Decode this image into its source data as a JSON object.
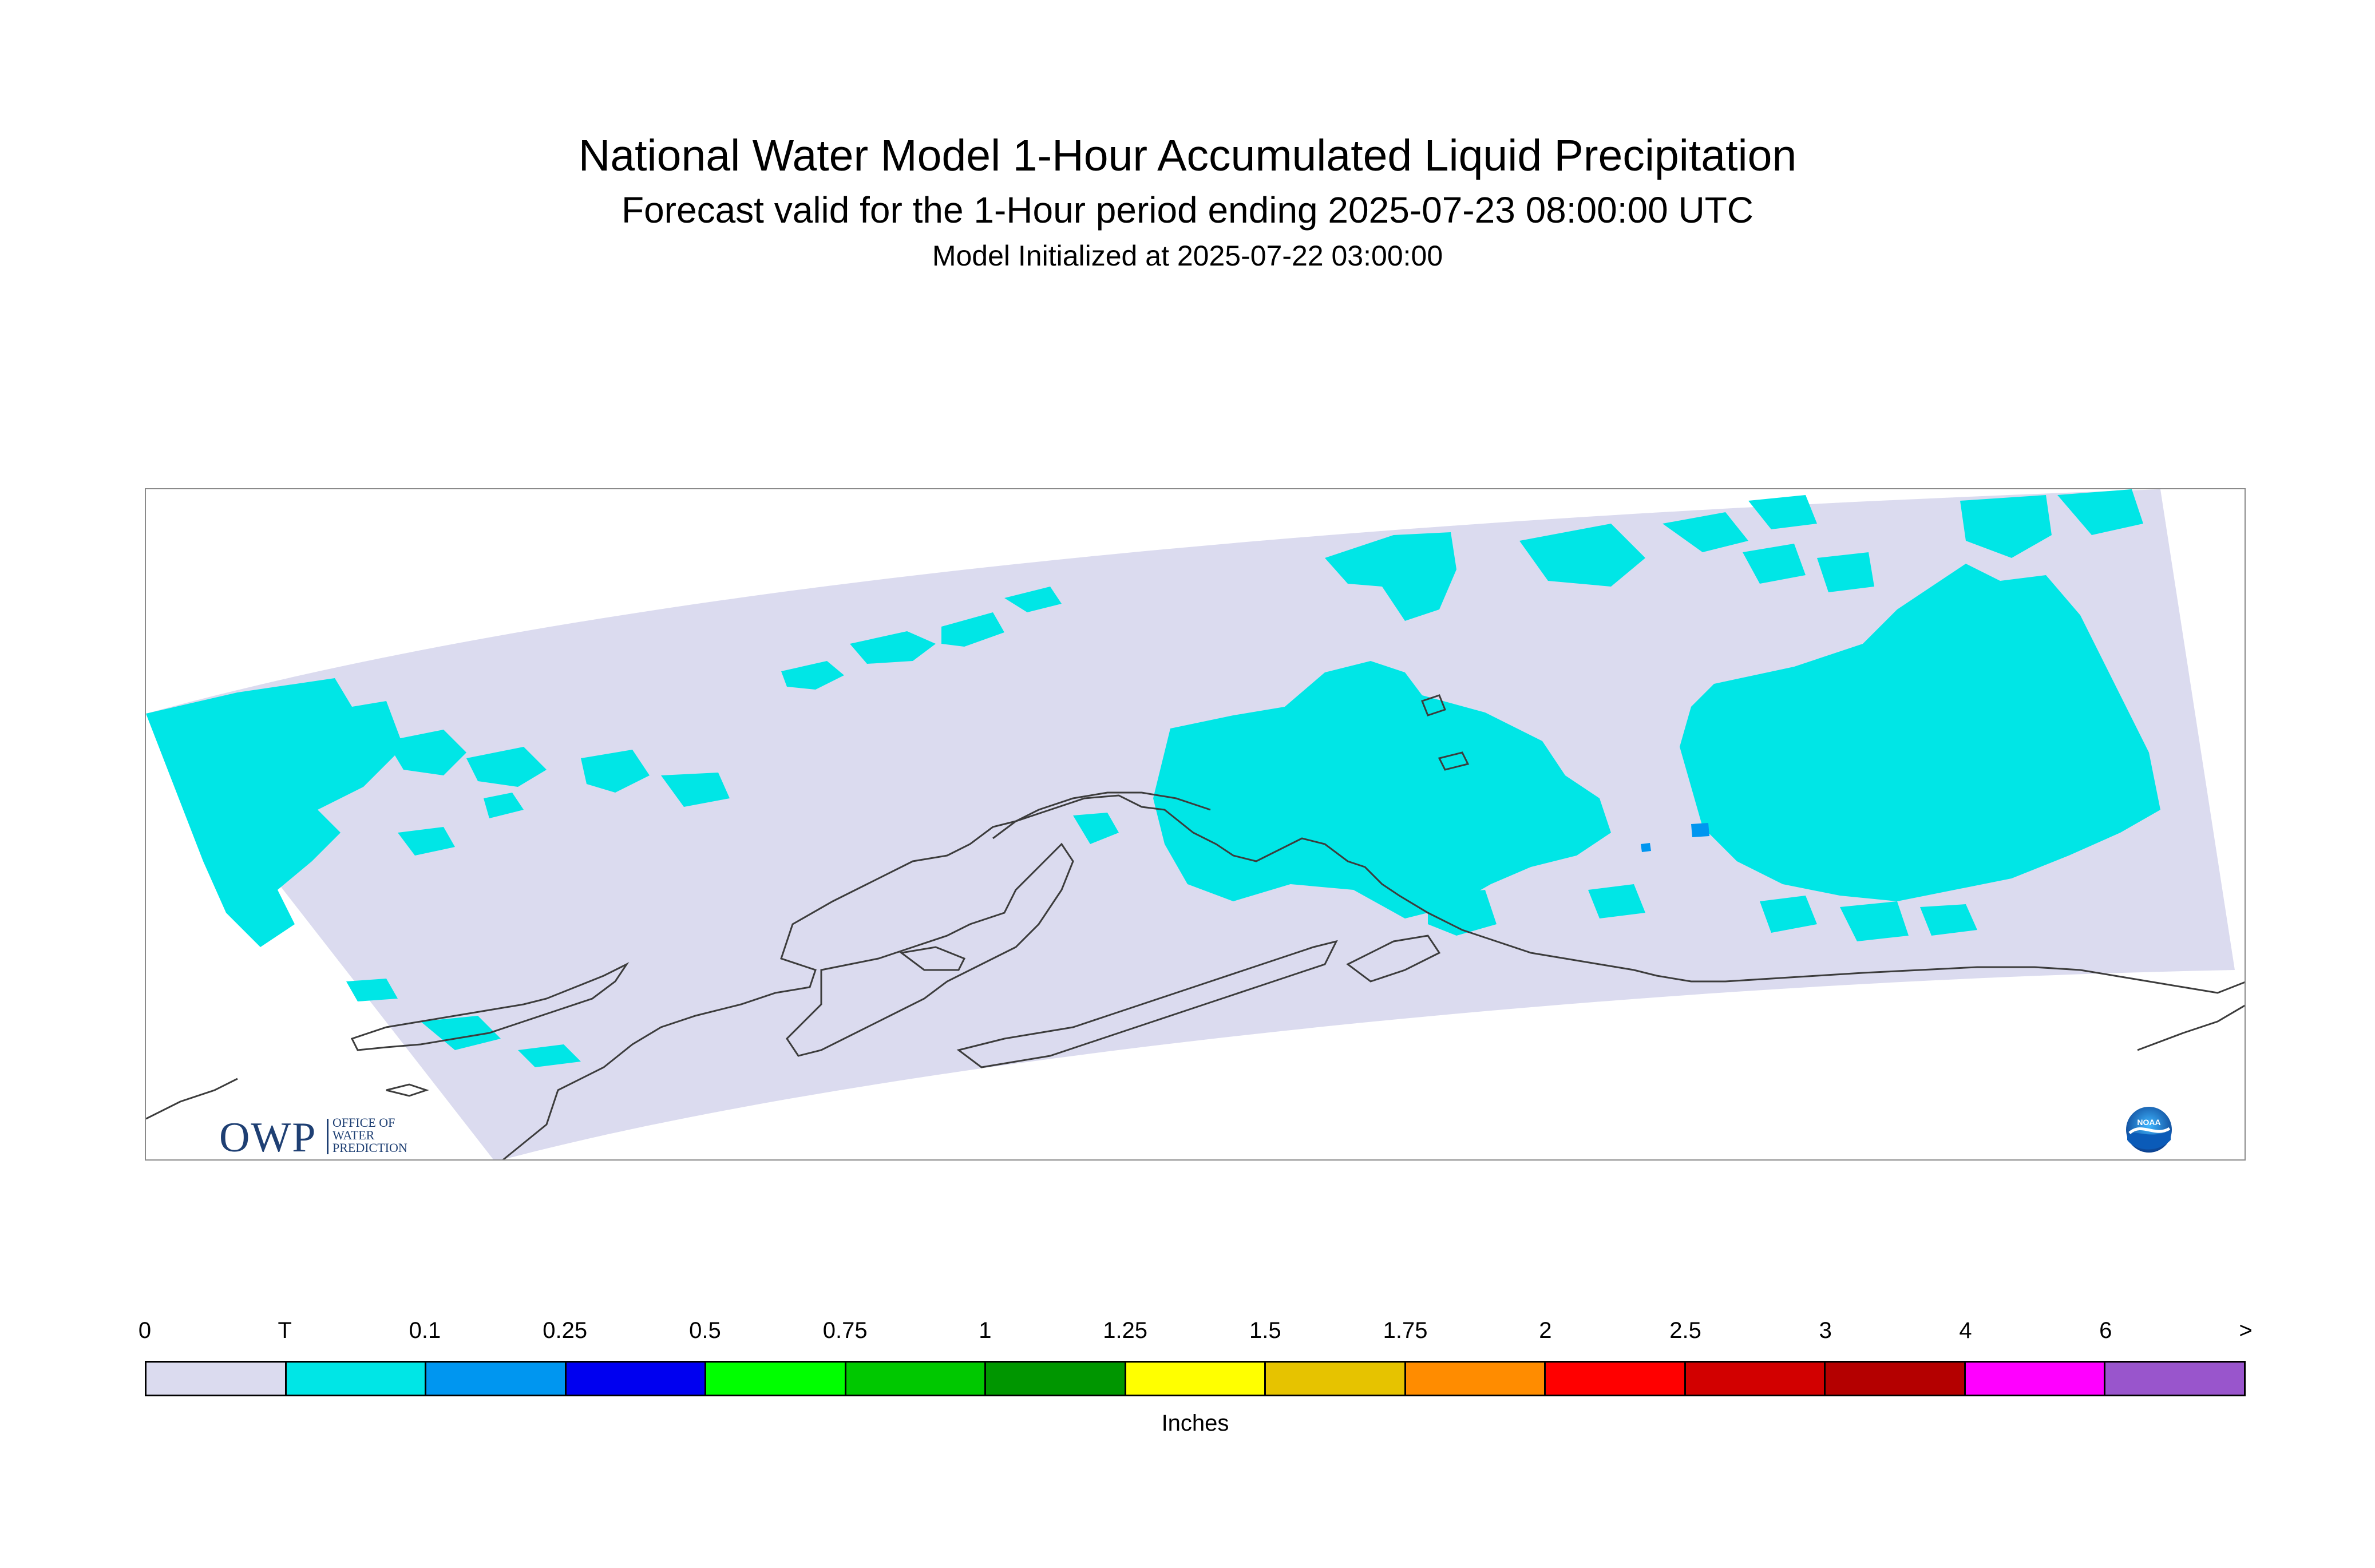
{
  "header": {
    "title": "National Water Model 1-Hour Accumulated Liquid Precipitation",
    "subtitle": "Forecast valid for the 1-Hour period ending 2025-07-23 08:00:00 UTC",
    "init_line": "Model Initialized at 2025-07-22 03:00:00"
  },
  "logos": {
    "owp_letters": "OWP",
    "owp_text_1": "OFFICE OF",
    "owp_text_2": "WATER",
    "owp_text_3": "PREDICTION",
    "noaa_text": "NOAA"
  },
  "map": {
    "domain_color": "#dbdbef",
    "trace_color": "#00e6e6",
    "light_color": "#0096f0",
    "coast_color": "#3c3c3c"
  },
  "legend": {
    "ticks": [
      "0",
      "T",
      "0.1",
      "0.25",
      "0.5",
      "0.75",
      "1",
      "1.25",
      "1.5",
      "1.75",
      "2",
      "2.5",
      "3",
      "4",
      "6",
      ">"
    ],
    "colors": [
      "#dbdbef",
      "#00e6e6",
      "#0096f0",
      "#0000f0",
      "#00ff00",
      "#00c800",
      "#009600",
      "#ffff00",
      "#e6c300",
      "#ff8c00",
      "#ff0000",
      "#d20000",
      "#b40000",
      "#ff00ff",
      "#9955cc"
    ],
    "units": "Inches"
  }
}
